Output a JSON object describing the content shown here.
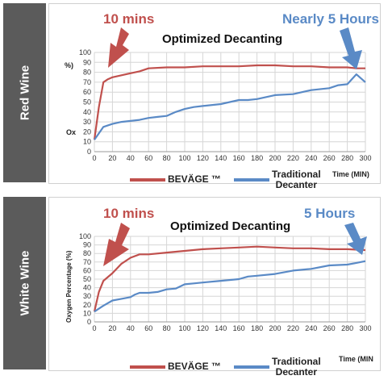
{
  "colors": {
    "beviage": "#c0504d",
    "traditional": "#5a8ac6",
    "side_bar": "#5b5b5b"
  },
  "panels": [
    {
      "side_label": "Red Wine",
      "title": "Optimized Decanting",
      "callout_left": "10 mins",
      "callout_right": "Nearly 5 Hours",
      "ylabel_parts": [
        "%)",
        "Ox"
      ],
      "xlabel": "Time (MIN)",
      "legend": {
        "a": "BEVÄGE ™",
        "b1": "Traditional",
        "b2": "Decanter"
      }
    },
    {
      "side_label": "White Wine",
      "title": "Optimized Decanting",
      "callout_left": "10 mins",
      "callout_right": "5 Hours",
      "ylabel": "Oxygen Percentage (%)",
      "xlabel": "Time (MIN",
      "legend": {
        "a": "BEVÄGE ™",
        "b1": "Traditional",
        "b2": "Decanter"
      }
    }
  ],
  "chart_data": [
    {
      "type": "line",
      "title": "Optimized Decanting",
      "xlabel": "Time (MIN)",
      "ylabel": "",
      "xlim": [
        0,
        300
      ],
      "ylim": [
        0,
        100
      ],
      "xticks": [
        0,
        20,
        40,
        60,
        80,
        100,
        120,
        140,
        160,
        180,
        200,
        220,
        240,
        260,
        280,
        300
      ],
      "yticks": [
        0,
        10,
        20,
        30,
        40,
        50,
        60,
        70,
        80,
        90,
        100
      ],
      "grid": true,
      "legend": "bottom",
      "series": [
        {
          "name": "BEVÄGE ™",
          "color": "#c0504d",
          "x": [
            0,
            5,
            10,
            15,
            20,
            30,
            40,
            50,
            60,
            80,
            100,
            120,
            140,
            160,
            180,
            200,
            220,
            240,
            260,
            280,
            290,
            300
          ],
          "y": [
            12,
            45,
            70,
            73,
            75,
            77,
            79,
            81,
            84,
            85,
            85,
            86,
            86,
            86,
            87,
            87,
            86,
            86,
            85,
            85,
            84,
            84
          ]
        },
        {
          "name": "Traditional Decanter",
          "color": "#5a8ac6",
          "x": [
            0,
            10,
            20,
            30,
            40,
            50,
            60,
            70,
            80,
            90,
            100,
            110,
            120,
            140,
            160,
            170,
            180,
            200,
            220,
            240,
            260,
            270,
            280,
            290,
            300
          ],
          "y": [
            12,
            25,
            28,
            30,
            31,
            32,
            34,
            35,
            36,
            40,
            43,
            45,
            46,
            48,
            52,
            52,
            53,
            57,
            58,
            62,
            64,
            67,
            68,
            78,
            70
          ]
        }
      ]
    },
    {
      "type": "line",
      "title": "Optimized Decanting",
      "xlabel": "Time (MIN",
      "ylabel": "Oxygen Percentage (%)",
      "xlim": [
        0,
        300
      ],
      "ylim": [
        0,
        100
      ],
      "xticks": [
        0,
        20,
        40,
        60,
        80,
        100,
        120,
        140,
        160,
        180,
        200,
        220,
        240,
        260,
        280,
        300
      ],
      "yticks": [
        0,
        10,
        20,
        30,
        40,
        50,
        60,
        70,
        80,
        90,
        100
      ],
      "grid": true,
      "legend": "bottom",
      "series": [
        {
          "name": "BEVÄGE ™",
          "color": "#c0504d",
          "x": [
            0,
            5,
            10,
            20,
            30,
            40,
            50,
            60,
            80,
            100,
            120,
            140,
            160,
            180,
            200,
            220,
            240,
            260,
            280,
            300
          ],
          "y": [
            12,
            35,
            48,
            57,
            68,
            75,
            79,
            79,
            81,
            83,
            85,
            86,
            87,
            88,
            87,
            86,
            86,
            85,
            85,
            84
          ]
        },
        {
          "name": "Traditional Decanter",
          "color": "#5a8ac6",
          "x": [
            0,
            10,
            20,
            30,
            40,
            45,
            50,
            60,
            70,
            80,
            90,
            100,
            110,
            120,
            140,
            160,
            170,
            180,
            200,
            220,
            240,
            260,
            280,
            290,
            300
          ],
          "y": [
            12,
            19,
            25,
            27,
            29,
            32,
            34,
            34,
            35,
            38,
            39,
            44,
            45,
            46,
            48,
            50,
            53,
            54,
            56,
            60,
            62,
            66,
            67,
            69,
            71
          ]
        }
      ]
    }
  ]
}
